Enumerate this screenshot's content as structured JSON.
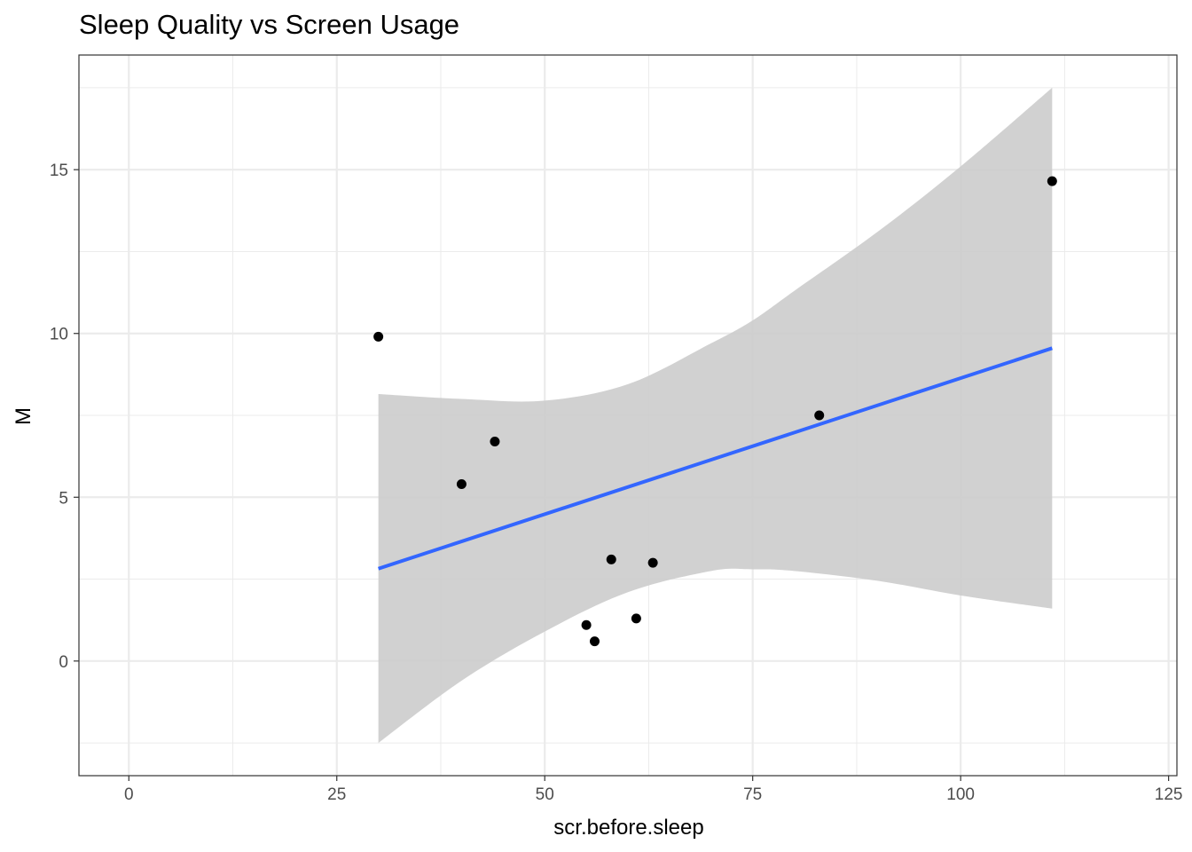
{
  "chart_data": {
    "type": "scatter",
    "title": "Sleep Quality vs Screen Usage",
    "xlabel": "scr.before.sleep",
    "ylabel": "M",
    "xlim": [
      -6,
      126
    ],
    "ylim": [
      -3.5,
      18.5
    ],
    "x_ticks": [
      0,
      25,
      50,
      75,
      100,
      125
    ],
    "x_tick_labels": [
      "0",
      "25",
      "50",
      "75",
      "100",
      "125"
    ],
    "y_ticks": [
      0,
      5,
      10,
      15
    ],
    "y_tick_labels": [
      "0",
      "5",
      "10",
      "15"
    ],
    "grid": true,
    "points": [
      {
        "x": 30,
        "y": 9.9
      },
      {
        "x": 40,
        "y": 5.4
      },
      {
        "x": 44,
        "y": 6.7
      },
      {
        "x": 55,
        "y": 1.1
      },
      {
        "x": 56,
        "y": 0.6
      },
      {
        "x": 58,
        "y": 3.1
      },
      {
        "x": 61,
        "y": 1.3
      },
      {
        "x": 63,
        "y": 3.0
      },
      {
        "x": 83,
        "y": 7.5
      },
      {
        "x": 111,
        "y": 14.65
      }
    ],
    "trend_line": {
      "x": [
        30,
        111
      ],
      "y": [
        2.82,
        9.55
      ],
      "color": "#3366ff"
    },
    "confidence_band": {
      "x": [
        30,
        40,
        50,
        60,
        70,
        75,
        80,
        90,
        100,
        111
      ],
      "lower": [
        -2.5,
        -0.6,
        0.9,
        2.1,
        2.75,
        2.8,
        2.75,
        2.45,
        2.0,
        1.6
      ],
      "upper": [
        8.15,
        8.0,
        7.95,
        8.45,
        9.7,
        10.4,
        11.3,
        13.1,
        15.1,
        17.5
      ],
      "color": "#cccccc"
    },
    "point_color": "#000000",
    "panel_border_color": "#333333",
    "grid_color": "#ebebeb"
  }
}
